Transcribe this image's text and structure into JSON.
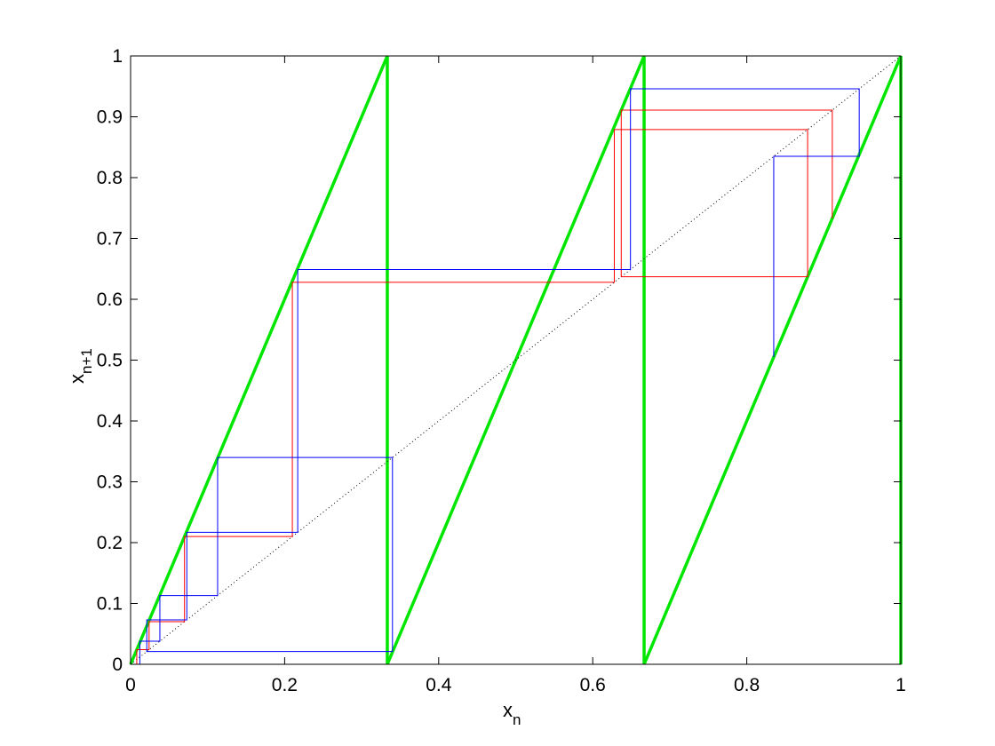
{
  "chart_data": {
    "type": "line",
    "title": "",
    "xlabel": {
      "base": "x",
      "sub": "n"
    },
    "ylabel": {
      "base": "x",
      "sub": "n+1"
    },
    "xlim": [
      0,
      1
    ],
    "ylim": [
      0,
      1
    ],
    "xticks": [
      0,
      0.2,
      0.4,
      0.6,
      0.8,
      1
    ],
    "xtick_labels": [
      "0",
      "0.2",
      "0.4",
      "0.6",
      "0.8",
      "1"
    ],
    "yticks": [
      0,
      0.1,
      0.2,
      0.3,
      0.4,
      0.5,
      0.6,
      0.7,
      0.8,
      0.9,
      1
    ],
    "ytick_labels": [
      "0",
      "0.1",
      "0.2",
      "0.3",
      "0.4",
      "0.5",
      "0.6",
      "0.7",
      "0.8",
      "0.9",
      "1"
    ],
    "grid": false,
    "colors": {
      "map": "#00e600",
      "diagonal": "#000000",
      "orbit_red": "#ff0000",
      "orbit_blue": "#0000ff"
    },
    "series": [
      {
        "role": "map",
        "style": "solid-thick",
        "segments": [
          {
            "x": [
              0,
              0.3333
            ],
            "y": [
              0,
              1
            ]
          },
          {
            "x": [
              0.3333,
              0.3333
            ],
            "y": [
              1,
              0
            ]
          },
          {
            "x": [
              0.3333,
              0.6667
            ],
            "y": [
              0,
              1
            ]
          },
          {
            "x": [
              0.6667,
              0.6667
            ],
            "y": [
              1,
              0
            ]
          },
          {
            "x": [
              0.6667,
              1
            ],
            "y": [
              0,
              1
            ]
          },
          {
            "x": [
              1,
              1
            ],
            "y": [
              1,
              0
            ]
          }
        ]
      },
      {
        "role": "diagonal",
        "style": "dotted",
        "segments": [
          {
            "x": [
              0,
              1
            ],
            "y": [
              0,
              1
            ]
          }
        ]
      },
      {
        "role": "orbit_red",
        "style": "solid-thin",
        "x": [
          0.008,
          0.008,
          0.024,
          0.024,
          0.07,
          0.07,
          0.21,
          0.21,
          0.628,
          0.628,
          0.879,
          0.879,
          0.637,
          0.637,
          0.911,
          0.911
        ],
        "y": [
          0.0,
          0.024,
          0.024,
          0.07,
          0.07,
          0.21,
          0.21,
          0.628,
          0.628,
          0.879,
          0.879,
          0.637,
          0.637,
          0.911,
          0.911,
          0.733
        ]
      },
      {
        "role": "orbit_blue",
        "style": "solid-thin",
        "x": [
          0.012,
          0.012,
          0.038,
          0.038,
          0.113,
          0.113,
          0.34,
          0.34,
          0.021,
          0.021,
          0.073,
          0.073,
          0.217,
          0.217,
          0.649,
          0.649,
          0.946,
          0.946,
          0.835,
          0.835
        ],
        "y": [
          0.0,
          0.038,
          0.038,
          0.113,
          0.113,
          0.34,
          0.34,
          0.021,
          0.021,
          0.073,
          0.073,
          0.217,
          0.217,
          0.649,
          0.649,
          0.946,
          0.946,
          0.835,
          0.835,
          0.505
        ]
      }
    ]
  }
}
